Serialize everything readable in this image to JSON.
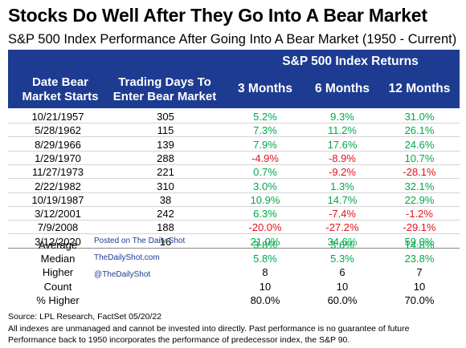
{
  "title": "Stocks Do Well After They Go Into A Bear Market",
  "subtitle": "S&P 500 Index Performance After Going Into A Bear Market (1950 - Current)",
  "header": {
    "group_title": "S&P 500 Index Returns",
    "col_date_line1": "Date Bear",
    "col_date_line2": "Market Starts",
    "col_days_line1": "Trading Days To",
    "col_days_line2": "Enter Bear Market",
    "col_3m": "3 Months",
    "col_6m": "6 Months",
    "col_12m": "12 Months"
  },
  "rows": [
    {
      "date": "10/21/1957",
      "days": "305",
      "m3": "5.2%",
      "m6": "9.3%",
      "m12": "31.0%"
    },
    {
      "date": "5/28/1962",
      "days": "115",
      "m3": "7.3%",
      "m6": "11.2%",
      "m12": "26.1%"
    },
    {
      "date": "8/29/1966",
      "days": "139",
      "m3": "7.9%",
      "m6": "17.6%",
      "m12": "24.6%"
    },
    {
      "date": "1/29/1970",
      "days": "288",
      "m3": "-4.9%",
      "m6": "-8.9%",
      "m12": "10.7%"
    },
    {
      "date": "11/27/1973",
      "days": "221",
      "m3": "0.7%",
      "m6": "-9.2%",
      "m12": "-28.1%"
    },
    {
      "date": "2/22/1982",
      "days": "310",
      "m3": "3.0%",
      "m6": "1.3%",
      "m12": "32.1%"
    },
    {
      "date": "10/19/1987",
      "days": "38",
      "m3": "10.9%",
      "m6": "14.7%",
      "m12": "22.9%"
    },
    {
      "date": "3/12/2001",
      "days": "242",
      "m3": "6.3%",
      "m6": "-7.4%",
      "m12": "-1.2%"
    },
    {
      "date": "7/9/2008",
      "days": "188",
      "m3": "-20.0%",
      "m6": "-27.2%",
      "m12": "-29.1%"
    },
    {
      "date": "3/12/2020",
      "days": "16",
      "m3": "21.0%",
      "m6": "34.6%",
      "m12": "59.0%"
    }
  ],
  "summary": [
    {
      "label": "Average",
      "m3": "3.8%",
      "m6": "3.6%",
      "m12": "14.8%"
    },
    {
      "label": "Median",
      "m3": "5.8%",
      "m6": "5.3%",
      "m12": "23.8%"
    },
    {
      "label": "Higher",
      "m3": "8",
      "m6": "6",
      "m12": "7"
    },
    {
      "label": "Count",
      "m3": "10",
      "m6": "10",
      "m12": "10"
    },
    {
      "label": "% Higher",
      "m3": "80.0%",
      "m6": "60.0%",
      "m12": "70.0%"
    }
  ],
  "watermark": {
    "line1": "Posted on The Daily Shot",
    "line2": "TheDailyShot.com",
    "line3": "@TheDailyShot"
  },
  "footer": {
    "source": "Source: LPL Research, FactSet 05/20/22",
    "note1": "All indexes are unmanaged and cannot be invested into directly. Past performance is no guarantee of future",
    "note2": "Performance back to 1950 incorporates the performance of predecessor index, the S&P 90."
  },
  "colors": {
    "header_bg": "#1d3c91",
    "positive": "#00a84a",
    "negative": "#e0131a"
  }
}
